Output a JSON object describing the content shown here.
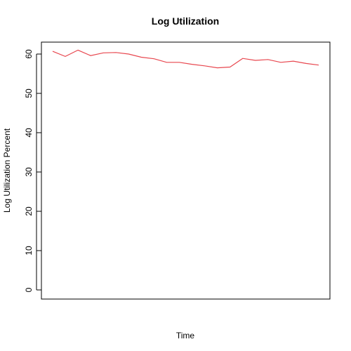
{
  "chart_data": {
    "type": "line",
    "title": "Log Utilization",
    "xlabel": "Time",
    "ylabel": "Log Utilization Percent",
    "x": [
      1,
      2,
      3,
      4,
      5,
      6,
      7,
      8,
      9,
      10,
      11,
      12,
      13,
      14,
      15,
      16,
      17,
      18,
      19,
      20,
      21,
      22
    ],
    "series": [
      {
        "color": "#e8474f",
        "values": [
          60.7,
          59.4,
          61.0,
          59.6,
          60.3,
          60.4,
          60.0,
          59.2,
          58.8,
          57.9,
          57.9,
          57.4,
          57.0,
          56.5,
          56.7,
          58.9,
          58.4,
          58.6,
          57.9,
          58.2,
          57.6,
          57.2
        ]
      }
    ],
    "ylim": [
      0,
      63
    ],
    "y_ticks": [
      "0",
      "10",
      "20",
      "30",
      "40",
      "50",
      "60"
    ],
    "grid": false,
    "legend": "none"
  }
}
